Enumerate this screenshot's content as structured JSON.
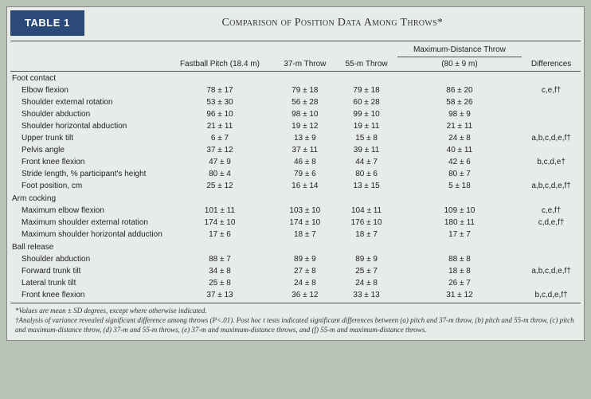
{
  "badge": "TABLE 1",
  "title": "Comparison of Position Data Among Throws*",
  "columns": {
    "rowhead": "",
    "c1": "Fastball Pitch (18.4 m)",
    "c2": "37-m Throw",
    "c3": "55-m Throw",
    "c4_group": "Maximum-Distance Throw",
    "c4": "(80 ± 9 m)",
    "c5": "Differences"
  },
  "sections": [
    {
      "label": "Foot contact",
      "rows": [
        {
          "label": "Elbow flexion",
          "v": [
            "78 ± 17",
            "79 ± 18",
            "79 ± 18",
            "86 ± 20",
            "c,e,f†"
          ]
        },
        {
          "label": "Shoulder external rotation",
          "v": [
            "53 ± 30",
            "56 ± 28",
            "60 ± 28",
            "58 ± 26",
            ""
          ]
        },
        {
          "label": "Shoulder abduction",
          "v": [
            "96 ± 10",
            "98 ± 10",
            "99 ± 10",
            "98 ± 9",
            ""
          ]
        },
        {
          "label": "Shoulder horizontal abduction",
          "v": [
            "21 ± 11",
            "19 ± 12",
            "19 ± 11",
            "21 ± 11",
            ""
          ]
        },
        {
          "label": "Upper trunk tilt",
          "v": [
            "6 ± 7",
            "13 ± 9",
            "15 ± 8",
            "24 ± 8",
            "a,b,c,d,e,f†"
          ]
        },
        {
          "label": "Pelvis angle",
          "v": [
            "37 ± 12",
            "37 ± 11",
            "39 ± 11",
            "40 ± 11",
            ""
          ]
        },
        {
          "label": "Front knee flexion",
          "v": [
            "47 ± 9",
            "46 ± 8",
            "44 ± 7",
            "42 ± 6",
            "b,c,d,e†"
          ]
        },
        {
          "label": "Stride length, % participant's height",
          "v": [
            "80 ± 4",
            "79 ± 6",
            "80 ± 6",
            "80 ± 7",
            ""
          ]
        },
        {
          "label": "Foot position, cm",
          "v": [
            "25 ± 12",
            "16 ± 14",
            "13 ± 15",
            "5 ± 18",
            "a,b,c,d,e,f†"
          ]
        }
      ]
    },
    {
      "label": "Arm cocking",
      "rows": [
        {
          "label": "Maximum elbow flexion",
          "v": [
            "101 ± 11",
            "103 ± 10",
            "104 ± 11",
            "109 ± 10",
            "c,e,f†"
          ]
        },
        {
          "label": "Maximum shoulder external rotation",
          "v": [
            "174 ± 10",
            "174 ± 10",
            "176 ± 10",
            "180 ± 11",
            "c,d,e,f†"
          ]
        },
        {
          "label": "Maximum shoulder horizontal adduction",
          "v": [
            "17 ± 6",
            "18 ± 7",
            "18 ± 7",
            "17 ± 7",
            ""
          ]
        }
      ]
    },
    {
      "label": "Ball release",
      "rows": [
        {
          "label": "Shoulder abduction",
          "v": [
            "88 ± 7",
            "89 ± 9",
            "89 ± 9",
            "88 ± 8",
            ""
          ]
        },
        {
          "label": "Forward trunk tilt",
          "v": [
            "34 ± 8",
            "27 ± 8",
            "25 ± 7",
            "18 ± 8",
            "a,b,c,d,e,f†"
          ]
        },
        {
          "label": "Lateral trunk tilt",
          "v": [
            "25 ± 8",
            "24 ± 8",
            "24 ± 8",
            "26 ± 7",
            ""
          ]
        },
        {
          "label": "Front knee flexion",
          "v": [
            "37 ± 13",
            "36 ± 12",
            "33 ± 13",
            "31 ± 12",
            "b,c,d,e,f†"
          ]
        }
      ]
    }
  ],
  "footnotes": [
    "*Values are mean ± SD degrees, except where otherwise indicated.",
    "†Analysis of variance revealed significant difference among throws (P<.01). Post hoc t tests indicated significant differences between (a) pitch and 37-m throw, (b) pitch and 55-m throw, (c) pitch and maximum-distance throw, (d) 37-m and 55-m throws, (e) 37-m and maximum-distance throws, and (f) 55-m and maximum-distance throws."
  ]
}
